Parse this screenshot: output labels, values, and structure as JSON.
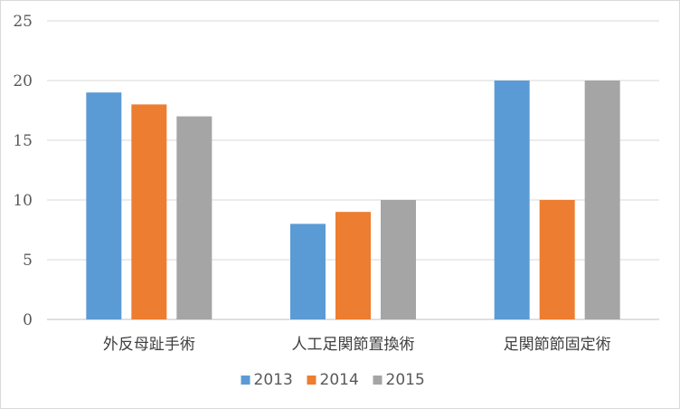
{
  "chart_data": {
    "type": "bar",
    "categories": [
      "外反母趾手術",
      "人工足関節置換術",
      "足関節節固定術"
    ],
    "series": [
      {
        "name": "2013",
        "values": [
          19,
          8,
          20
        ],
        "color": "#5b9bd5"
      },
      {
        "name": "2014",
        "values": [
          18,
          9,
          10
        ],
        "color": "#ed7d31"
      },
      {
        "name": "2015",
        "values": [
          17,
          10,
          20
        ],
        "color": "#a5a5a5"
      }
    ],
    "yticks": [
      "0",
      "5",
      "10",
      "15",
      "20",
      "25"
    ],
    "ylim": [
      0,
      25
    ],
    "grid": true,
    "legend": "bottom",
    "title": "",
    "xlabel": "",
    "ylabel": ""
  }
}
